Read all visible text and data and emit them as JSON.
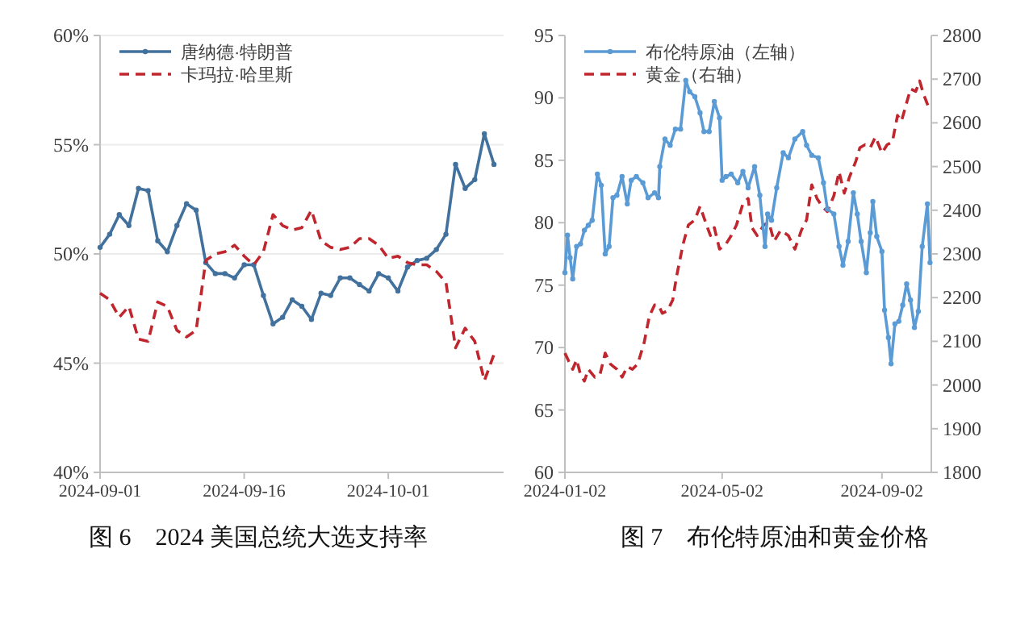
{
  "chart_data": [
    {
      "type": "line",
      "title": "图 6　2024 美国总统大选支持率",
      "xlim": [
        "2024-09-01",
        "2024-10-13"
      ],
      "xticks": [
        "2024-09-01",
        "2024-09-16",
        "2024-10-01"
      ],
      "ylim": [
        40,
        60
      ],
      "yticks": [
        {
          "value": 40,
          "label": "40%"
        },
        {
          "value": 45,
          "label": "45%"
        },
        {
          "value": 50,
          "label": "50%"
        },
        {
          "value": 55,
          "label": "55%"
        },
        {
          "value": 60,
          "label": "60%"
        }
      ],
      "grid": "y",
      "legend": "top left",
      "x": [
        "2024-09-01",
        "2024-09-02",
        "2024-09-03",
        "2024-09-04",
        "2024-09-05",
        "2024-09-06",
        "2024-09-07",
        "2024-09-08",
        "2024-09-09",
        "2024-09-10",
        "2024-09-11",
        "2024-09-12",
        "2024-09-13",
        "2024-09-14",
        "2024-09-15",
        "2024-09-16",
        "2024-09-17",
        "2024-09-18",
        "2024-09-19",
        "2024-09-20",
        "2024-09-21",
        "2024-09-22",
        "2024-09-23",
        "2024-09-24",
        "2024-09-25",
        "2024-09-26",
        "2024-09-27",
        "2024-09-28",
        "2024-09-29",
        "2024-09-30",
        "2024-10-01",
        "2024-10-02",
        "2024-10-03",
        "2024-10-04",
        "2024-10-05",
        "2024-10-06",
        "2024-10-07",
        "2024-10-08",
        "2024-10-09",
        "2024-10-10",
        "2024-10-11",
        "2024-10-12"
      ],
      "series": [
        {
          "name": "唐纳德·特朗普",
          "color": "#41719c",
          "marker": "circle",
          "line_style": "solid",
          "values": [
            50.3,
            50.9,
            51.8,
            51.3,
            53.0,
            52.9,
            50.6,
            50.1,
            51.3,
            52.3,
            52.0,
            49.6,
            49.1,
            49.1,
            48.9,
            49.5,
            49.5,
            48.1,
            46.8,
            47.1,
            47.9,
            47.6,
            47.0,
            48.2,
            48.1,
            48.9,
            48.9,
            48.6,
            48.3,
            49.1,
            48.9,
            48.3,
            49.4,
            49.7,
            49.8,
            50.2,
            50.9,
            54.1,
            53.0,
            53.4,
            55.5,
            54.1
          ]
        },
        {
          "name": "卡玛拉·哈里斯",
          "color": "#c0262d",
          "marker": "none",
          "line_style": "dashed",
          "values": [
            48.2,
            47.9,
            47.1,
            47.6,
            46.1,
            46.0,
            47.8,
            47.6,
            46.5,
            46.2,
            46.5,
            49.7,
            50.0,
            50.1,
            50.4,
            49.9,
            49.5,
            50.1,
            51.8,
            51.3,
            51.1,
            51.2,
            52.0,
            50.6,
            50.3,
            50.2,
            50.3,
            50.7,
            50.7,
            50.4,
            49.8,
            49.9,
            49.6,
            49.5,
            49.5,
            49.2,
            48.7,
            45.7,
            46.6,
            46.0,
            44.2,
            45.4
          ]
        }
      ]
    },
    {
      "type": "line",
      "title": "图 7　布伦特原油和黄金价格",
      "xlim": [
        "2024-01-02",
        "2024-10-10"
      ],
      "xticks": [
        "2024-01-02",
        "2024-05-02",
        "2024-09-02"
      ],
      "ylim": [
        60,
        95
      ],
      "yticks": [
        60,
        65,
        70,
        75,
        80,
        85,
        90,
        95
      ],
      "y2lim": [
        1800,
        2800
      ],
      "y2ticks": [
        1800,
        1900,
        2000,
        2100,
        2200,
        2300,
        2400,
        2500,
        2600,
        2700,
        2800
      ],
      "legend": "top left",
      "series": [
        {
          "name": "布伦特原油（左轴）",
          "color": "#5b9bd5",
          "marker": "circle",
          "line_style": "solid",
          "x": [
            "2024-01-02",
            "2024-01-04",
            "2024-01-06",
            "2024-01-08",
            "2024-01-11",
            "2024-01-14",
            "2024-01-17",
            "2024-01-20",
            "2024-01-23",
            "2024-01-27",
            "2024-01-30",
            "2024-02-02",
            "2024-02-05",
            "2024-02-08",
            "2024-02-11",
            "2024-02-15",
            "2024-02-19",
            "2024-02-22",
            "2024-02-26",
            "2024-03-02",
            "2024-03-06",
            "2024-03-11",
            "2024-03-14",
            "2024-03-15",
            "2024-03-19",
            "2024-03-23",
            "2024-03-27",
            "2024-03-31",
            "2024-04-04",
            "2024-04-07",
            "2024-04-11",
            "2024-04-15",
            "2024-04-18",
            "2024-04-22",
            "2024-04-26",
            "2024-04-30",
            "2024-05-02",
            "2024-05-05",
            "2024-05-09",
            "2024-05-14",
            "2024-05-18",
            "2024-05-22",
            "2024-05-27",
            "2024-05-31",
            "2024-06-04",
            "2024-06-06",
            "2024-06-09",
            "2024-06-13",
            "2024-06-18",
            "2024-06-22",
            "2024-06-27",
            "2024-07-03",
            "2024-07-06",
            "2024-07-10",
            "2024-07-15",
            "2024-07-19",
            "2024-07-22",
            "2024-07-27",
            "2024-07-31",
            "2024-08-03",
            "2024-08-07",
            "2024-08-11",
            "2024-08-14",
            "2024-08-17",
            "2024-08-21",
            "2024-08-24",
            "2024-08-26",
            "2024-08-29",
            "2024-09-02",
            "2024-09-04",
            "2024-09-07",
            "2024-09-09",
            "2024-09-12",
            "2024-09-15",
            "2024-09-18",
            "2024-09-21",
            "2024-09-24",
            "2024-09-27",
            "2024-09-30",
            "2024-10-03",
            "2024-10-07",
            "2024-10-09"
          ],
          "values": [
            76.0,
            79.0,
            77.2,
            75.5,
            78.1,
            78.3,
            79.4,
            79.8,
            80.2,
            83.9,
            83.0,
            77.5,
            78.1,
            82.0,
            82.2,
            83.7,
            81.5,
            83.4,
            83.7,
            83.2,
            82.0,
            82.4,
            82.0,
            84.5,
            86.7,
            86.2,
            87.5,
            87.5,
            91.4,
            90.5,
            90.1,
            88.8,
            87.3,
            87.3,
            89.7,
            88.4,
            83.4,
            83.7,
            83.9,
            83.2,
            84.1,
            82.8,
            84.5,
            82.2,
            78.1,
            80.7,
            80.2,
            82.8,
            85.6,
            85.2,
            86.7,
            87.3,
            86.2,
            85.4,
            85.2,
            83.2,
            81.1,
            80.7,
            78.1,
            76.6,
            78.5,
            82.4,
            80.7,
            78.5,
            76.0,
            79.2,
            81.7,
            78.9,
            77.7,
            73.0,
            70.8,
            68.7,
            71.9,
            72.1,
            73.4,
            75.1,
            73.8,
            71.6,
            72.9,
            78.1,
            81.5,
            76.8
          ]
        },
        {
          "name": "黄金（右轴）",
          "color": "#c0262d",
          "marker": "none",
          "line_style": "dashed",
          "axis": "y2",
          "x": [
            "2024-01-02",
            "2024-01-05",
            "2024-01-08",
            "2024-01-11",
            "2024-01-14",
            "2024-01-17",
            "2024-01-20",
            "2024-01-25",
            "2024-01-29",
            "2024-02-02",
            "2024-02-06",
            "2024-02-11",
            "2024-02-15",
            "2024-02-19",
            "2024-02-23",
            "2024-02-27",
            "2024-03-03",
            "2024-03-07",
            "2024-03-11",
            "2024-03-14",
            "2024-03-17",
            "2024-03-21",
            "2024-03-25",
            "2024-03-28",
            "2024-04-02",
            "2024-04-06",
            "2024-04-11",
            "2024-04-15",
            "2024-04-20",
            "2024-04-23",
            "2024-04-26",
            "2024-04-30",
            "2024-05-05",
            "2024-05-09",
            "2024-05-13",
            "2024-05-18",
            "2024-05-22",
            "2024-05-25",
            "2024-05-29",
            "2024-06-03",
            "2024-06-07",
            "2024-06-11",
            "2024-06-16",
            "2024-06-22",
            "2024-06-27",
            "2024-07-02",
            "2024-07-06",
            "2024-07-10",
            "2024-07-14",
            "2024-07-18",
            "2024-07-22",
            "2024-07-27",
            "2024-07-31",
            "2024-08-04",
            "2024-08-08",
            "2024-08-13",
            "2024-08-16",
            "2024-08-20",
            "2024-08-24",
            "2024-08-28",
            "2024-09-02",
            "2024-09-06",
            "2024-09-10",
            "2024-09-14",
            "2024-09-17",
            "2024-09-20",
            "2024-09-24",
            "2024-09-28",
            "2024-10-01",
            "2024-10-04",
            "2024-10-08"
          ],
          "values": [
            2073,
            2054,
            2036,
            2058,
            2024,
            2009,
            2036,
            2018,
            2024,
            2073,
            2048,
            2036,
            2018,
            2042,
            2036,
            2048,
            2097,
            2158,
            2183,
            2183,
            2164,
            2170,
            2195,
            2250,
            2323,
            2366,
            2378,
            2409,
            2366,
            2342,
            2360,
            2311,
            2323,
            2342,
            2366,
            2415,
            2427,
            2360,
            2342,
            2366,
            2372,
            2329,
            2354,
            2342,
            2311,
            2354,
            2378,
            2458,
            2427,
            2409,
            2397,
            2433,
            2488,
            2439,
            2476,
            2513,
            2543,
            2550,
            2543,
            2568,
            2531,
            2550,
            2556,
            2617,
            2604,
            2635,
            2678,
            2672,
            2696,
            2666,
            2635
          ]
        }
      ]
    }
  ]
}
